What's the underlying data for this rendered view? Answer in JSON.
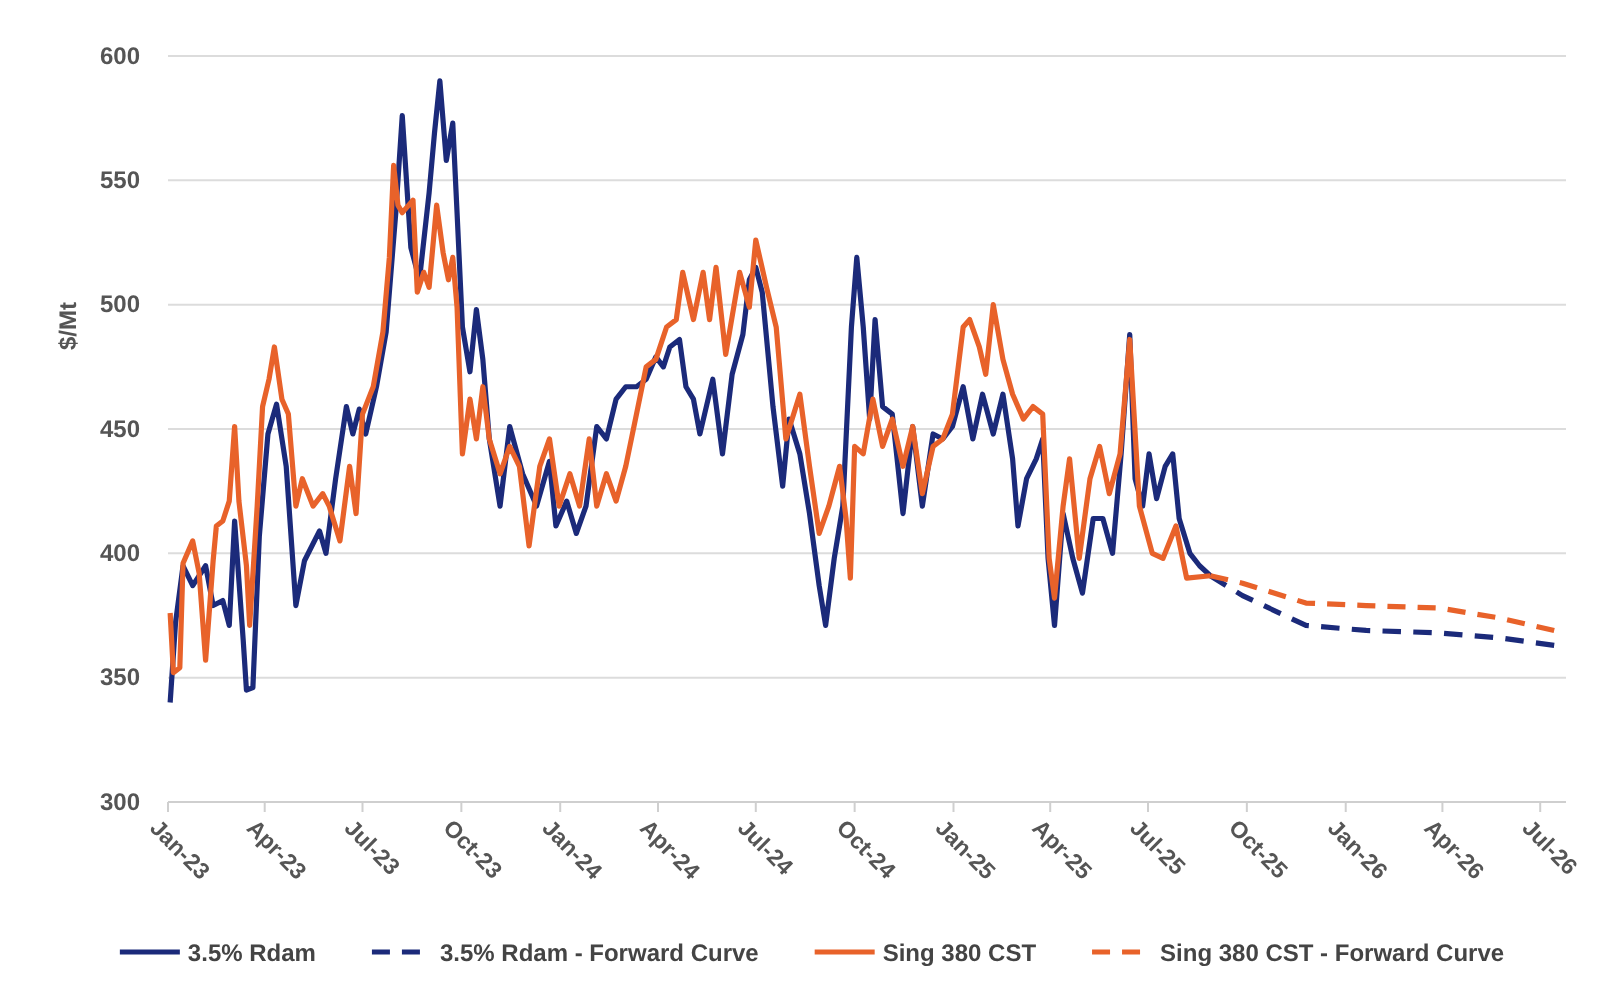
{
  "chart_data": {
    "type": "line",
    "ylabel": "$/Mt",
    "ylim": [
      300,
      600
    ],
    "yticks": [
      300,
      350,
      400,
      450,
      500,
      550,
      600
    ],
    "xlim": [
      "2023-01-01",
      "2026-07-25"
    ],
    "xticks": [
      {
        "value": "2023-01",
        "label": "Jan-23"
      },
      {
        "value": "2023-04",
        "label": "Apr-23"
      },
      {
        "value": "2023-07",
        "label": "Jul-23"
      },
      {
        "value": "2023-10",
        "label": "Oct-23"
      },
      {
        "value": "2024-01",
        "label": "Jan-24"
      },
      {
        "value": "2024-04",
        "label": "Apr-24"
      },
      {
        "value": "2024-07",
        "label": "Jul-24"
      },
      {
        "value": "2024-10",
        "label": "Oct-24"
      },
      {
        "value": "2025-01",
        "label": "Jan-25"
      },
      {
        "value": "2025-04",
        "label": "Apr-25"
      },
      {
        "value": "2025-07",
        "label": "Jul-25"
      },
      {
        "value": "2025-10",
        "label": "Oct-25"
      },
      {
        "value": "2026-01",
        "label": "Jan-26"
      },
      {
        "value": "2026-04",
        "label": "Apr-26"
      },
      {
        "value": "2026-07",
        "label": "Jul-26"
      }
    ],
    "grid": "y",
    "legend": "bottom",
    "marker": "none",
    "series": [
      {
        "name": "3.5% Rdam",
        "color": "#1b2a7a",
        "line_style": "solid",
        "x": [
          "2023-01-03",
          "2023-01-08",
          "2023-01-15",
          "2023-01-24",
          "2023-02-05",
          "2023-02-12",
          "2023-02-21",
          "2023-02-27",
          "2023-03-04",
          "2023-03-12",
          "2023-03-15",
          "2023-03-21",
          "2023-03-27",
          "2023-04-04",
          "2023-04-12",
          "2023-04-21",
          "2023-04-30",
          "2023-05-08",
          "2023-05-22",
          "2023-05-28",
          "2023-06-06",
          "2023-06-16",
          "2023-06-22",
          "2023-06-28",
          "2023-07-04",
          "2023-07-14",
          "2023-07-23",
          "2023-08-01",
          "2023-08-07",
          "2023-08-15",
          "2023-08-23",
          "2023-09-01",
          "2023-09-06",
          "2023-09-11",
          "2023-09-17",
          "2023-09-23",
          "2023-09-27",
          "2023-10-02",
          "2023-10-09",
          "2023-10-15",
          "2023-10-21",
          "2023-10-27",
          "2023-11-06",
          "2023-11-15",
          "2023-11-27",
          "2023-12-10",
          "2023-12-22",
          "2023-12-28",
          "2024-01-07",
          "2024-01-16",
          "2024-01-25",
          "2024-02-04",
          "2024-02-13",
          "2024-02-22",
          "2024-03-02",
          "2024-03-12",
          "2024-03-21",
          "2024-03-30",
          "2024-04-06",
          "2024-04-12",
          "2024-04-21",
          "2024-04-27",
          "2024-05-04",
          "2024-05-10",
          "2024-05-22",
          "2024-05-31",
          "2024-06-09",
          "2024-06-19",
          "2024-06-25",
          "2024-07-01",
          "2024-07-07",
          "2024-07-17",
          "2024-07-26",
          "2024-08-01",
          "2024-08-11",
          "2024-08-20",
          "2024-08-29",
          "2024-09-04",
          "2024-09-12",
          "2024-09-20",
          "2024-09-28",
          "2024-10-03",
          "2024-10-09",
          "2024-10-15",
          "2024-10-20",
          "2024-10-27",
          "2024-11-05",
          "2024-11-15",
          "2024-11-24",
          "2024-12-03",
          "2024-12-13",
          "2024-12-22",
          "2024-12-31",
          "2025-01-10",
          "2025-01-19",
          "2025-01-28",
          "2025-02-07",
          "2025-02-16",
          "2025-02-25",
          "2025-03-02",
          "2025-03-10",
          "2025-03-19",
          "2025-03-25",
          "2025-03-30",
          "2025-04-05",
          "2025-04-13",
          "2025-04-22",
          "2025-05-01",
          "2025-05-11",
          "2025-05-20",
          "2025-05-29",
          "2025-06-06",
          "2025-06-14",
          "2025-06-19",
          "2025-06-26",
          "2025-07-02",
          "2025-07-09",
          "2025-07-17",
          "2025-07-24",
          "2025-07-30",
          "2025-08-09",
          "2025-08-18",
          "2025-08-28"
        ],
        "values": [
          340,
          372,
          395,
          387,
          395,
          379,
          381,
          371,
          413,
          365,
          345,
          346,
          407,
          448,
          460,
          435,
          379,
          397,
          409,
          400,
          430,
          459,
          448,
          458,
          448,
          467,
          489,
          537,
          576,
          523,
          510,
          545,
          569,
          590,
          558,
          573,
          537,
          491,
          473,
          498,
          478,
          446,
          419,
          451,
          432,
          419,
          437,
          411,
          421,
          408,
          419,
          451,
          446,
          462,
          467,
          467,
          470,
          479,
          475,
          483,
          486,
          467,
          462,
          448,
          470,
          440,
          472,
          488,
          510,
          515,
          505,
          459,
          427,
          454,
          440,
          416,
          387,
          371,
          398,
          419,
          491,
          519,
          491,
          454,
          494,
          459,
          456,
          416,
          451,
          419,
          448,
          446,
          451,
          467,
          446,
          464,
          448,
          464,
          438,
          411,
          430,
          438,
          446,
          398,
          371,
          416,
          398,
          384,
          414,
          414,
          400,
          440,
          488,
          430,
          419,
          440,
          422,
          435,
          440,
          414,
          400,
          395,
          391
        ]
      },
      {
        "name": "3.5% Rdam - Forward Curve",
        "color": "#1b2a7a",
        "line_style": "dashed",
        "x": [
          "2025-08-28",
          "2025-09-27",
          "2025-11-25",
          "2026-01-20",
          "2026-03-29",
          "2026-05-24",
          "2026-07-14"
        ],
        "values": [
          391,
          383,
          371,
          369,
          368,
          366,
          363
        ]
      },
      {
        "name": "Sing 380 CST",
        "color": "#e8622a",
        "line_style": "solid",
        "x": [
          "2023-01-03",
          "2023-01-06",
          "2023-01-12",
          "2023-01-15",
          "2023-01-24",
          "2023-01-30",
          "2023-02-05",
          "2023-02-12",
          "2023-02-15",
          "2023-02-21",
          "2023-02-27",
          "2023-03-04",
          "2023-03-08",
          "2023-03-15",
          "2023-03-18",
          "2023-03-25",
          "2023-03-30",
          "2023-04-05",
          "2023-04-10",
          "2023-04-17",
          "2023-04-23",
          "2023-04-30",
          "2023-05-06",
          "2023-05-16",
          "2023-05-25",
          "2023-05-31",
          "2023-06-10",
          "2023-06-19",
          "2023-06-25",
          "2023-07-01",
          "2023-07-11",
          "2023-07-20",
          "2023-07-26",
          "2023-07-30",
          "2023-08-03",
          "2023-08-07",
          "2023-08-17",
          "2023-08-21",
          "2023-08-27",
          "2023-09-01",
          "2023-09-08",
          "2023-09-14",
          "2023-09-19",
          "2023-09-23",
          "2023-09-27",
          "2023-10-02",
          "2023-10-09",
          "2023-10-15",
          "2023-10-21",
          "2023-10-27",
          "2023-11-06",
          "2023-11-15",
          "2023-11-24",
          "2023-12-03",
          "2023-12-13",
          "2023-12-22",
          "2023-12-31",
          "2024-01-10",
          "2024-01-19",
          "2024-01-28",
          "2024-02-04",
          "2024-02-13",
          "2024-02-22",
          "2024-03-02",
          "2024-03-12",
          "2024-03-21",
          "2024-03-30",
          "2024-04-09",
          "2024-04-18",
          "2024-04-24",
          "2024-05-04",
          "2024-05-13",
          "2024-05-19",
          "2024-05-25",
          "2024-06-03",
          "2024-06-16",
          "2024-06-25",
          "2024-07-01",
          "2024-07-11",
          "2024-07-20",
          "2024-07-29",
          "2024-08-11",
          "2024-08-20",
          "2024-08-29",
          "2024-09-07",
          "2024-09-17",
          "2024-09-23",
          "2024-09-27",
          "2024-10-01",
          "2024-10-09",
          "2024-10-18",
          "2024-10-27",
          "2024-11-05",
          "2024-11-15",
          "2024-11-24",
          "2024-12-03",
          "2024-12-13",
          "2024-12-22",
          "2024-12-31",
          "2025-01-10",
          "2025-01-16",
          "2025-01-25",
          "2025-01-31",
          "2025-02-07",
          "2025-02-16",
          "2025-02-25",
          "2025-03-07",
          "2025-03-16",
          "2025-03-25",
          "2025-03-31",
          "2025-04-05",
          "2025-04-13",
          "2025-04-19",
          "2025-04-28",
          "2025-05-08",
          "2025-05-17",
          "2025-05-26",
          "2025-06-05",
          "2025-06-14",
          "2025-06-23",
          "2025-07-05",
          "2025-07-15",
          "2025-07-27",
          "2025-08-06",
          "2025-08-28"
        ],
        "values": [
          376,
          352,
          354,
          396,
          405,
          392,
          357,
          397,
          411,
          413,
          421,
          451,
          421,
          395,
          371,
          419,
          459,
          470,
          483,
          462,
          456,
          419,
          430,
          419,
          424,
          419,
          405,
          435,
          416,
          456,
          467,
          489,
          519,
          556,
          540,
          537,
          542,
          505,
          513,
          507,
          540,
          521,
          510,
          519,
          499,
          440,
          462,
          446,
          467,
          446,
          432,
          443,
          435,
          403,
          435,
          446,
          419,
          432,
          419,
          446,
          419,
          432,
          421,
          435,
          456,
          475,
          478,
          491,
          494,
          513,
          494,
          513,
          494,
          515,
          480,
          513,
          499,
          526,
          507,
          491,
          446,
          464,
          435,
          408,
          419,
          435,
          414,
          390,
          443,
          440,
          462,
          443,
          454,
          435,
          451,
          424,
          443,
          446,
          456,
          491,
          494,
          483,
          472,
          500,
          478,
          464,
          454,
          459,
          456,
          398,
          382,
          419,
          438,
          398,
          430,
          443,
          424,
          440,
          486,
          419,
          400,
          398,
          411,
          390,
          391
        ]
      },
      {
        "name": "Sing 380 CST - Forward Curve",
        "color": "#e8622a",
        "line_style": "dashed",
        "x": [
          "2025-08-28",
          "2025-09-27",
          "2025-11-25",
          "2026-01-20",
          "2026-03-29",
          "2026-05-24",
          "2026-07-14"
        ],
        "values": [
          391,
          388,
          380,
          379,
          378,
          374,
          369
        ]
      }
    ]
  }
}
